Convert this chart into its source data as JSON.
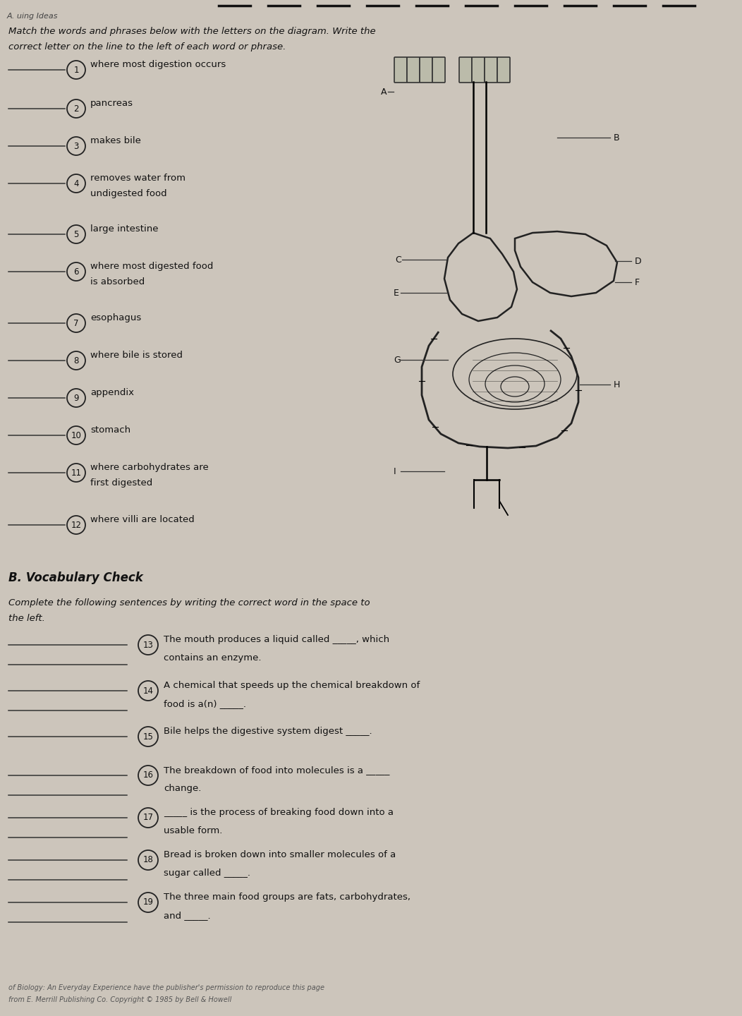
{
  "bg_color": "#ccc5bb",
  "title_line1": "Match the words and phrases below with the letters on the diagram. Write the",
  "title_line2": "correct letter on the line to the left of each word or phrase.",
  "section_b_header": "B. Vocabulary Check",
  "section_b_instruction1": "Complete the following sentences by writing the correct word in the space to",
  "section_b_instruction2": "the left.",
  "part_a_items": [
    {
      "num": "1",
      "text": "where most digestion occurs",
      "two_line": false
    },
    {
      "num": "2",
      "text": "pancreas",
      "two_line": false
    },
    {
      "num": "3",
      "text": "makes bile",
      "two_line": false
    },
    {
      "num": "4",
      "text": "removes water from\nundigested food",
      "two_line": true
    },
    {
      "num": "5",
      "text": "large intestine",
      "two_line": false
    },
    {
      "num": "6",
      "text": "where most digested food\nis absorbed",
      "two_line": true
    },
    {
      "num": "7",
      "text": "esophagus",
      "two_line": false
    },
    {
      "num": "8",
      "text": "where bile is stored",
      "two_line": false
    },
    {
      "num": "9",
      "text": "appendix",
      "two_line": false
    },
    {
      "num": "10",
      "text": "stomach",
      "two_line": false
    },
    {
      "num": "11",
      "text": "where carbohydrates are\nfirst digested",
      "two_line": true
    },
    {
      "num": "12",
      "text": "where villi are located",
      "two_line": false
    }
  ],
  "part_b_items": [
    {
      "num": "13",
      "text": "The mouth produces a liquid called _____, which\ncontains an enzyme."
    },
    {
      "num": "14",
      "text": "A chemical that speeds up the chemical breakdown of\nfood is a(n) _____."
    },
    {
      "num": "15",
      "text": "Bile helps the digestive system digest _____."
    },
    {
      "num": "16",
      "text": "The breakdown of food into molecules is a _____\nchange."
    },
    {
      "num": "17",
      "text": "_____ is the process of breaking food down into a\nusable form."
    },
    {
      "num": "18",
      "text": "Bread is broken down into smaller molecules of a\nsugar called _____."
    },
    {
      "num": "19",
      "text": "The three main food groups are fats, carbohydrates,\nand _____."
    }
  ],
  "footer1": "of Biology: An Everyday Experience have the publisher's permission to reproduce this page",
  "footer2": "from E. Merrill Publishing Co. Copyright © 1985 by Bell & Howell"
}
